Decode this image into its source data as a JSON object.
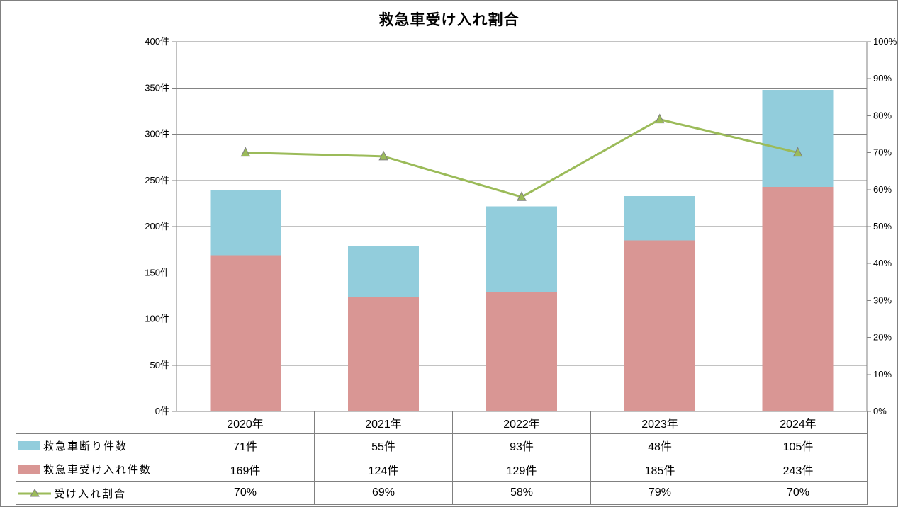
{
  "title": "救急車受け入れ割合",
  "colors": {
    "declined_bar": "#92CDDC",
    "accepted_bar": "#D99694",
    "rate_line": "#9BBB59",
    "marker_fill": "#9BBB59",
    "marker_stroke": "#7F7F7F",
    "gridline": "#848484",
    "axis_line": "#808080",
    "table_border": "#808080",
    "text": "#000000",
    "background": "#FFFFFF"
  },
  "chart_data": {
    "type": "bar",
    "subtype": "stacked-bars-with-line",
    "title": "救急車受け入れ割合",
    "categories": [
      "2020年",
      "2021年",
      "2022年",
      "2023年",
      "2024年"
    ],
    "series": [
      {
        "name": "救急車断り件数",
        "type": "bar",
        "axis": "left",
        "stack_order": "top",
        "color": "#92CDDC",
        "values": [
          71,
          55,
          93,
          48,
          105
        ],
        "display": [
          "71件",
          "55件",
          "93件",
          "48件",
          "105件"
        ]
      },
      {
        "name": "救急車受け入れ件数",
        "type": "bar",
        "axis": "left",
        "stack_order": "bottom",
        "color": "#D99694",
        "values": [
          169,
          124,
          129,
          185,
          243
        ],
        "display": [
          "169件",
          "124件",
          "129件",
          "185件",
          "243件"
        ]
      },
      {
        "name": "受け入れ割合",
        "type": "line",
        "axis": "right",
        "color": "#9BBB59",
        "values": [
          70,
          69,
          58,
          79,
          70
        ],
        "display": [
          "70%",
          "69%",
          "58%",
          "79%",
          "70%"
        ]
      }
    ],
    "left_axis": {
      "min": 0,
      "max": 400,
      "step": 50,
      "tick_labels": [
        "0件",
        "50件",
        "100件",
        "150件",
        "200件",
        "250件",
        "300件",
        "350件",
        "400件"
      ]
    },
    "right_axis": {
      "min": 0,
      "max": 100,
      "step": 10,
      "tick_labels": [
        "0%",
        "10%",
        "20%",
        "30%",
        "40%",
        "50%",
        "60%",
        "70%",
        "80%",
        "90%",
        "100%"
      ]
    },
    "grid": true,
    "legend_position": "table-left-column"
  }
}
